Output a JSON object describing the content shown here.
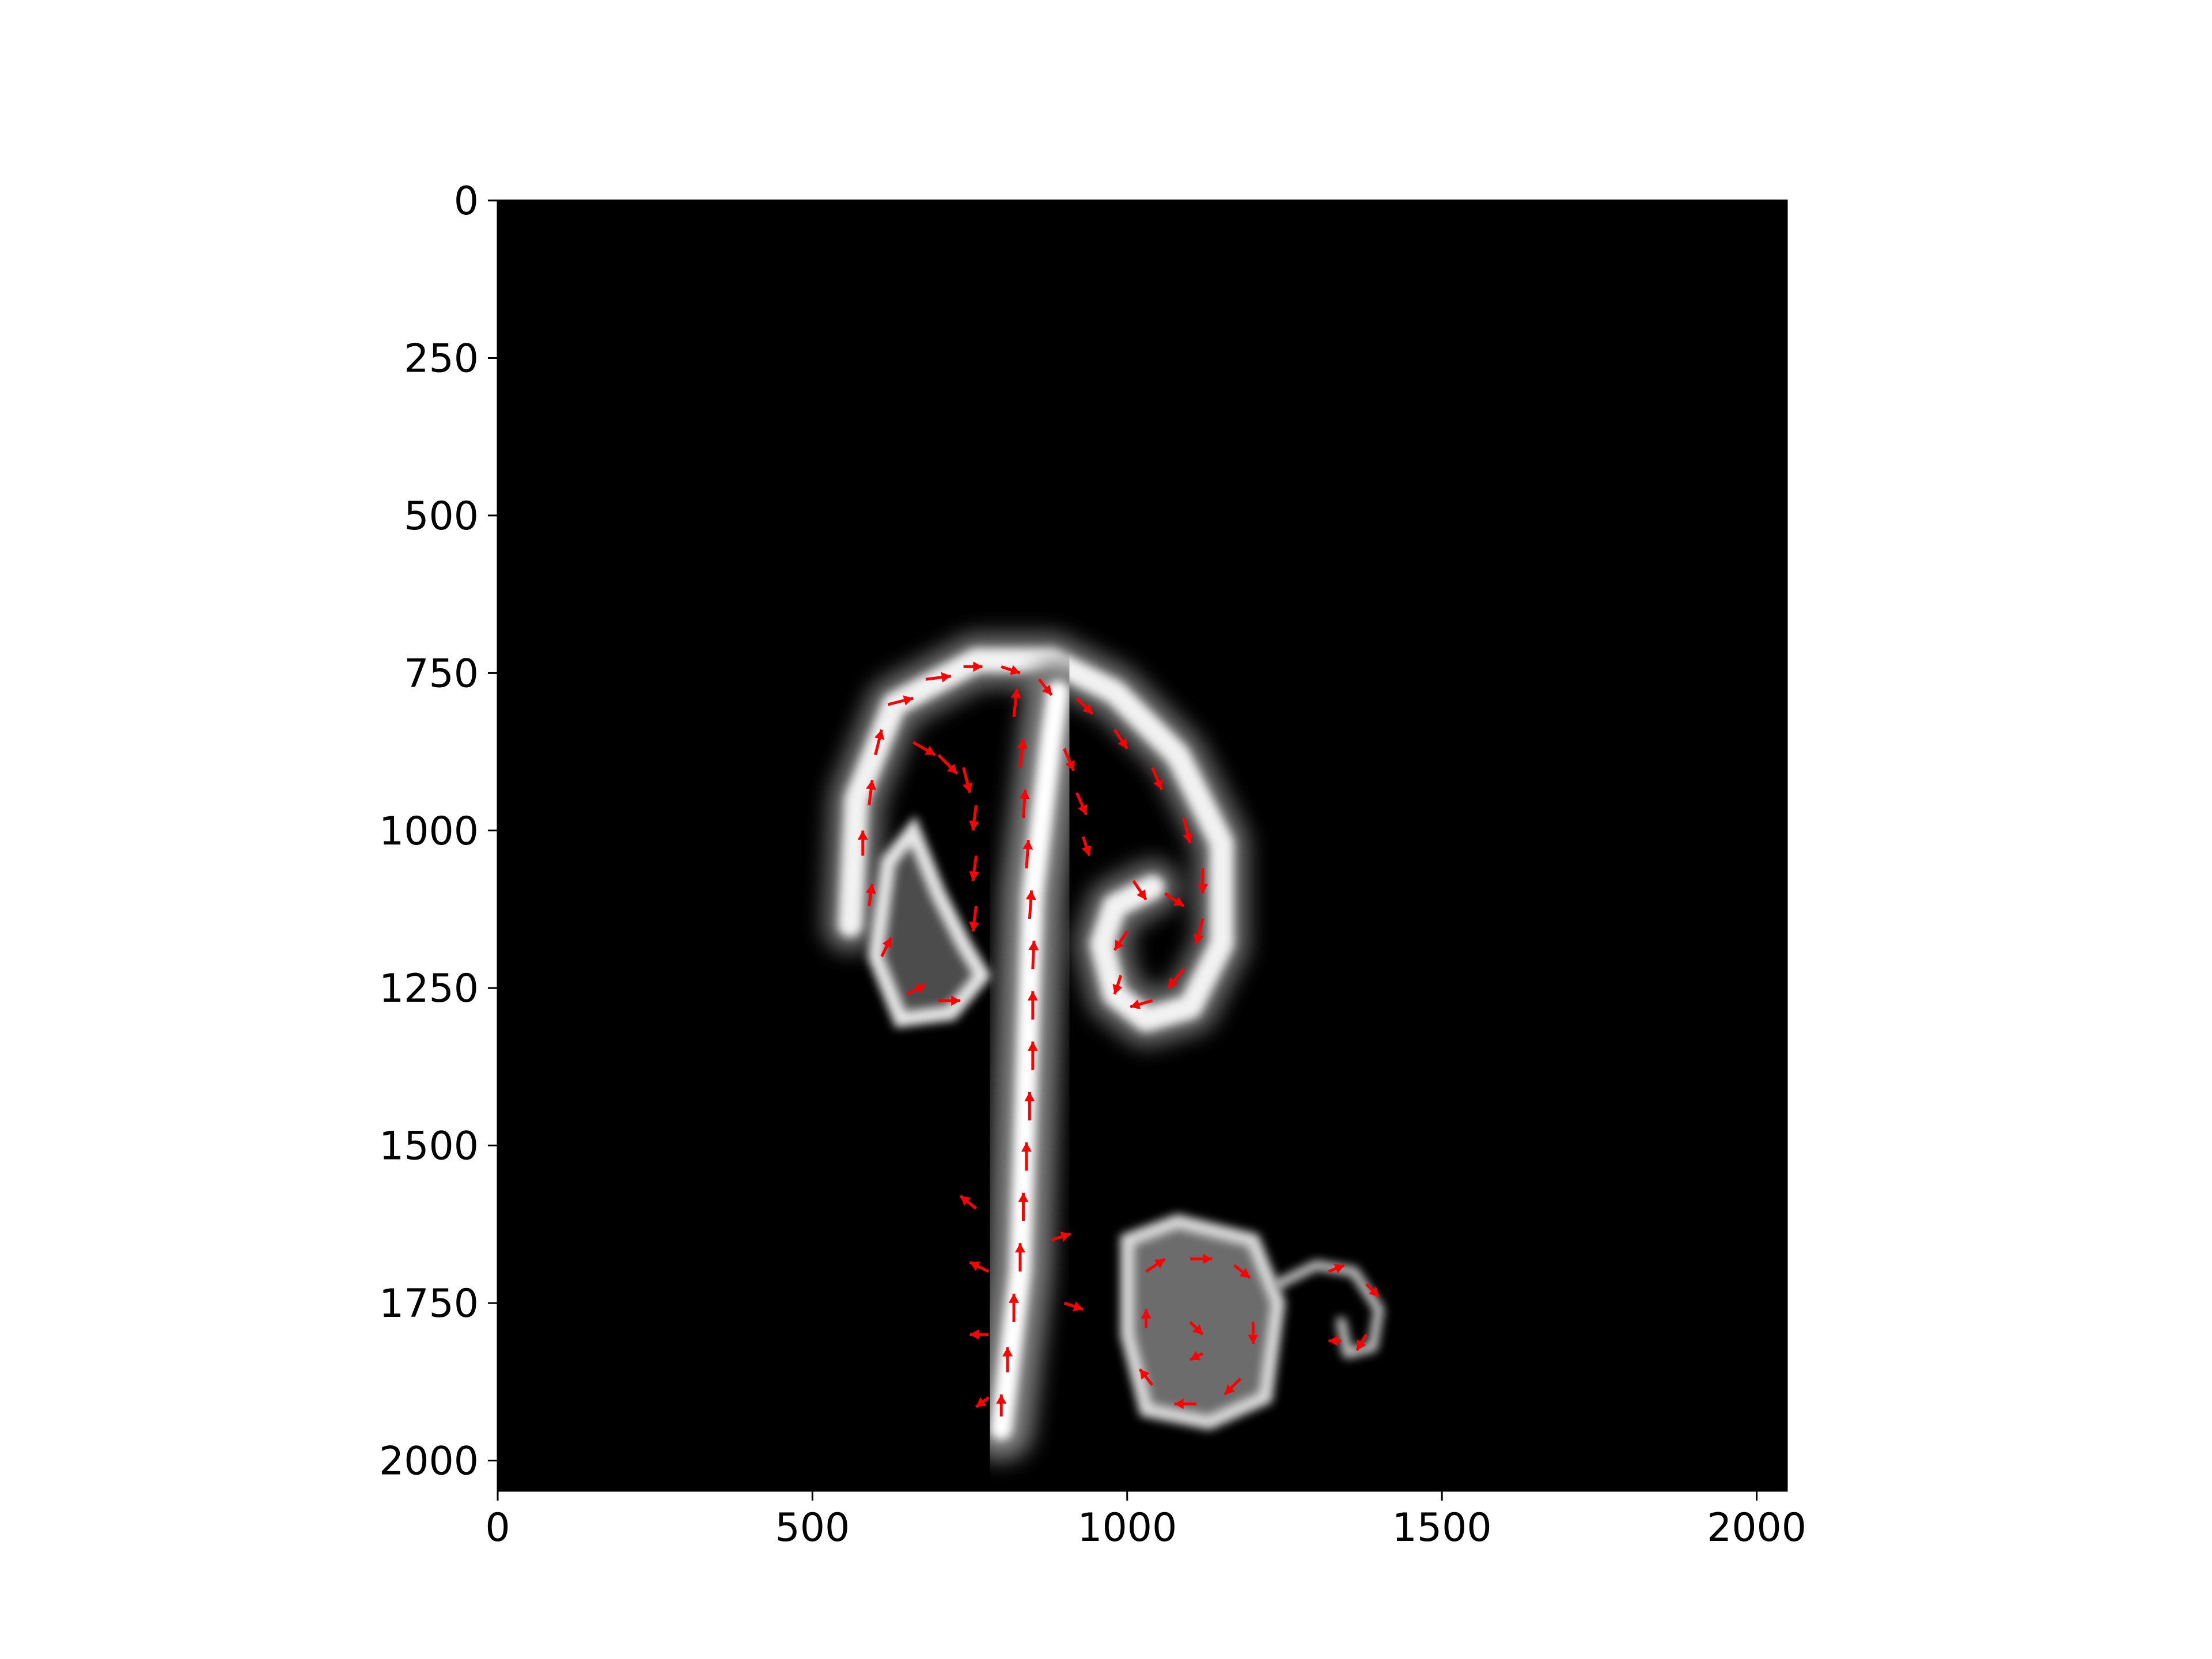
{
  "chart_data": {
    "type": "heatmap",
    "title": "",
    "xlabel": "",
    "ylabel": "",
    "xlim": [
      0,
      2048
    ],
    "ylim": [
      2048,
      0
    ],
    "y_inverted": true,
    "grid": false,
    "x_ticks": [
      0,
      500,
      1000,
      1500,
      2000
    ],
    "x_tick_labels": [
      "0",
      "500",
      "1000",
      "1500",
      "2000"
    ],
    "y_ticks": [
      0,
      250,
      500,
      750,
      1000,
      1250,
      1500,
      1750,
      2000
    ],
    "y_tick_labels": [
      "0",
      "250",
      "500",
      "750",
      "1000",
      "1250",
      "1500",
      "1750",
      "2000"
    ],
    "background_color": "#000000",
    "image": {
      "description_colormap": "grayscale",
      "plume": {
        "stem": [
          [
            800,
            1950
          ],
          [
            830,
            1700
          ],
          [
            840,
            1400
          ],
          [
            850,
            1100
          ],
          [
            880,
            850
          ],
          [
            890,
            780
          ]
        ],
        "cap_outline": [
          [
            560,
            1150
          ],
          [
            570,
            950
          ],
          [
            630,
            800
          ],
          [
            760,
            730
          ],
          [
            880,
            730
          ],
          [
            980,
            780
          ],
          [
            1080,
            880
          ],
          [
            1150,
            1020
          ],
          [
            1150,
            1180
          ],
          [
            1100,
            1280
          ],
          [
            1030,
            1300
          ],
          [
            980,
            1260
          ],
          [
            960,
            1180
          ],
          [
            980,
            1120
          ],
          [
            1040,
            1090
          ]
        ],
        "left_lobe": [
          [
            700,
            1100
          ],
          [
            660,
            1000
          ],
          [
            620,
            1050
          ],
          [
            600,
            1200
          ],
          [
            640,
            1300
          ],
          [
            720,
            1290
          ],
          [
            770,
            1230
          ],
          [
            740,
            1180
          ]
        ],
        "right_base": [
          [
            1000,
            1650
          ],
          [
            1080,
            1620
          ],
          [
            1200,
            1650
          ],
          [
            1240,
            1750
          ],
          [
            1220,
            1900
          ],
          [
            1130,
            1940
          ],
          [
            1030,
            1920
          ],
          [
            1000,
            1800
          ]
        ],
        "wisp": [
          [
            1240,
            1720
          ],
          [
            1300,
            1690
          ],
          [
            1360,
            1700
          ],
          [
            1400,
            1760
          ],
          [
            1390,
            1820
          ],
          [
            1350,
            1830
          ],
          [
            1340,
            1780
          ]
        ]
      }
    },
    "quiver": {
      "color": "#ff0000",
      "region_note": "velocity arrows over the plume",
      "vectors": [
        [
          620,
          800,
          40,
          -10
        ],
        [
          680,
          760,
          40,
          -5
        ],
        [
          740,
          740,
          30,
          0
        ],
        [
          800,
          740,
          30,
          10
        ],
        [
          860,
          760,
          20,
          25
        ],
        [
          920,
          790,
          25,
          25
        ],
        [
          980,
          840,
          20,
          30
        ],
        [
          1040,
          900,
          15,
          35
        ],
        [
          1090,
          980,
          10,
          40
        ],
        [
          1120,
          1060,
          0,
          40
        ],
        [
          1120,
          1140,
          -10,
          40
        ],
        [
          1090,
          1220,
          -25,
          30
        ],
        [
          1040,
          1270,
          -35,
          10
        ],
        [
          600,
          880,
          10,
          -40
        ],
        [
          590,
          960,
          5,
          -40
        ],
        [
          580,
          1040,
          0,
          -40
        ],
        [
          590,
          1120,
          5,
          -35
        ],
        [
          610,
          1200,
          15,
          -30
        ],
        [
          650,
          1260,
          30,
          -15
        ],
        [
          700,
          1270,
          35,
          0
        ],
        [
          660,
          860,
          35,
          20
        ],
        [
          700,
          880,
          30,
          30
        ],
        [
          740,
          900,
          10,
          40
        ],
        [
          760,
          960,
          -5,
          40
        ],
        [
          760,
          1040,
          -5,
          40
        ],
        [
          760,
          1120,
          -5,
          40
        ],
        [
          820,
          820,
          5,
          -45
        ],
        [
          830,
          900,
          5,
          -45
        ],
        [
          835,
          980,
          3,
          -45
        ],
        [
          840,
          1060,
          3,
          -45
        ],
        [
          845,
          1140,
          3,
          -45
        ],
        [
          850,
          1220,
          2,
          -45
        ],
        [
          850,
          1300,
          0,
          -45
        ],
        [
          850,
          1380,
          0,
          -45
        ],
        [
          845,
          1460,
          0,
          -45
        ],
        [
          840,
          1540,
          0,
          -45
        ],
        [
          835,
          1620,
          0,
          -45
        ],
        [
          830,
          1700,
          0,
          -45
        ],
        [
          820,
          1780,
          0,
          -45
        ],
        [
          810,
          1860,
          0,
          -40
        ],
        [
          800,
          1930,
          0,
          -35
        ],
        [
          900,
          870,
          15,
          35
        ],
        [
          920,
          940,
          15,
          35
        ],
        [
          930,
          1010,
          10,
          30
        ],
        [
          1010,
          1080,
          20,
          30
        ],
        [
          1060,
          1100,
          30,
          20
        ],
        [
          1000,
          1160,
          -20,
          30
        ],
        [
          990,
          1230,
          -10,
          30
        ],
        [
          760,
          1600,
          -25,
          -20
        ],
        [
          780,
          1700,
          -30,
          -15
        ],
        [
          780,
          1800,
          -30,
          0
        ],
        [
          780,
          1900,
          -20,
          15
        ],
        [
          880,
          1650,
          30,
          -10
        ],
        [
          900,
          1750,
          30,
          10
        ],
        [
          1030,
          1700,
          30,
          -20
        ],
        [
          1100,
          1680,
          35,
          0
        ],
        [
          1170,
          1690,
          25,
          20
        ],
        [
          1200,
          1780,
          0,
          35
        ],
        [
          1180,
          1870,
          -25,
          25
        ],
        [
          1110,
          1910,
          -35,
          0
        ],
        [
          1040,
          1880,
          -20,
          -25
        ],
        [
          1030,
          1790,
          0,
          -30
        ],
        [
          1100,
          1780,
          20,
          20
        ],
        [
          1120,
          1830,
          -20,
          10
        ],
        [
          1320,
          1700,
          25,
          -10
        ],
        [
          1380,
          1720,
          20,
          20
        ],
        [
          1380,
          1800,
          -15,
          25
        ],
        [
          1340,
          1810,
          -20,
          0
        ]
      ]
    }
  }
}
